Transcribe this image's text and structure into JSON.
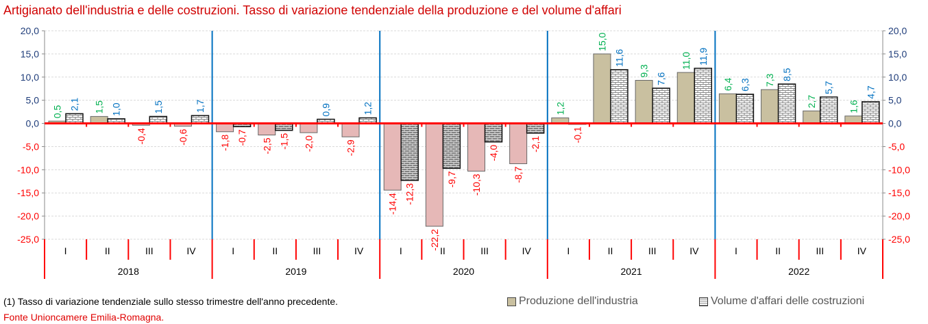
{
  "chart_data": {
    "type": "bar",
    "title": "Artigianato dell'industria e delle costruzioni. Tasso di variazione tendenziale della produzione e del volume d'affari",
    "years": [
      "2018",
      "2019",
      "2020",
      "2021",
      "2022"
    ],
    "quarters": [
      "I",
      "II",
      "III",
      "IV"
    ],
    "ylim": [
      -25,
      20
    ],
    "yticks": [
      "20,0",
      "15,0",
      "10,0",
      "5,0",
      "0,0",
      "-5,0",
      "-10,0",
      "-15,0",
      "-20,0",
      "-25,0"
    ],
    "ytick_values": [
      20,
      15,
      10,
      5,
      0,
      -5,
      -10,
      -15,
      -20,
      -25
    ],
    "grid": true,
    "legend_placement": "bottom-right",
    "series": [
      {
        "name": "Produzione dell'industria",
        "color": "#c9c0a0",
        "negative_color": "#e6b8b7",
        "label_color": "#00b050",
        "values": [
          0.5,
          1.5,
          -0.4,
          -0.6,
          -1.8,
          -2.5,
          -2.0,
          -2.9,
          -14.4,
          -22.2,
          -10.3,
          -8.7,
          1.2,
          15.0,
          9.3,
          11.0,
          6.4,
          7.3,
          2.7,
          1.6
        ],
        "labels": [
          "0,5",
          "1,5",
          "-0,4",
          "-0,6",
          "-1,8",
          "-2,5",
          "-2,0",
          "-2,9",
          "-14,4",
          "-22,2",
          "-10,3",
          "-8,7",
          "1,2",
          "15,0",
          "9,3",
          "11,0",
          "6,4",
          "7,3",
          "2,7",
          "1,6"
        ]
      },
      {
        "name": "Volume d'affari delle costruzioni",
        "color": "#ffffff",
        "negative_color": "#808080",
        "label_color": "#0070c0",
        "values": [
          2.1,
          1.0,
          1.5,
          1.7,
          -0.7,
          -1.5,
          0.9,
          1.2,
          -12.3,
          -9.7,
          -4.0,
          -2.1,
          -0.1,
          11.6,
          7.6,
          11.9,
          6.3,
          8.5,
          5.7,
          4.7
        ],
        "labels": [
          "2,1",
          "1,0",
          "1,5",
          "1,7",
          "-0,7",
          "-1,5",
          "0,9",
          "1,2",
          "-12,3",
          "-9,7",
          "-4,0",
          "-2,1",
          "-0,1",
          "11,6",
          "7,6",
          "11,9",
          "6,3",
          "8,5",
          "5,7",
          "4,7"
        ]
      }
    ],
    "negative_label_color": "#ff0000"
  },
  "footer": {
    "note": "(1) Tasso di variazione tendenziale sullo stesso trimestre dell'anno precedente.",
    "source": "Fonte Unioncamere Emilia-Romagna."
  }
}
